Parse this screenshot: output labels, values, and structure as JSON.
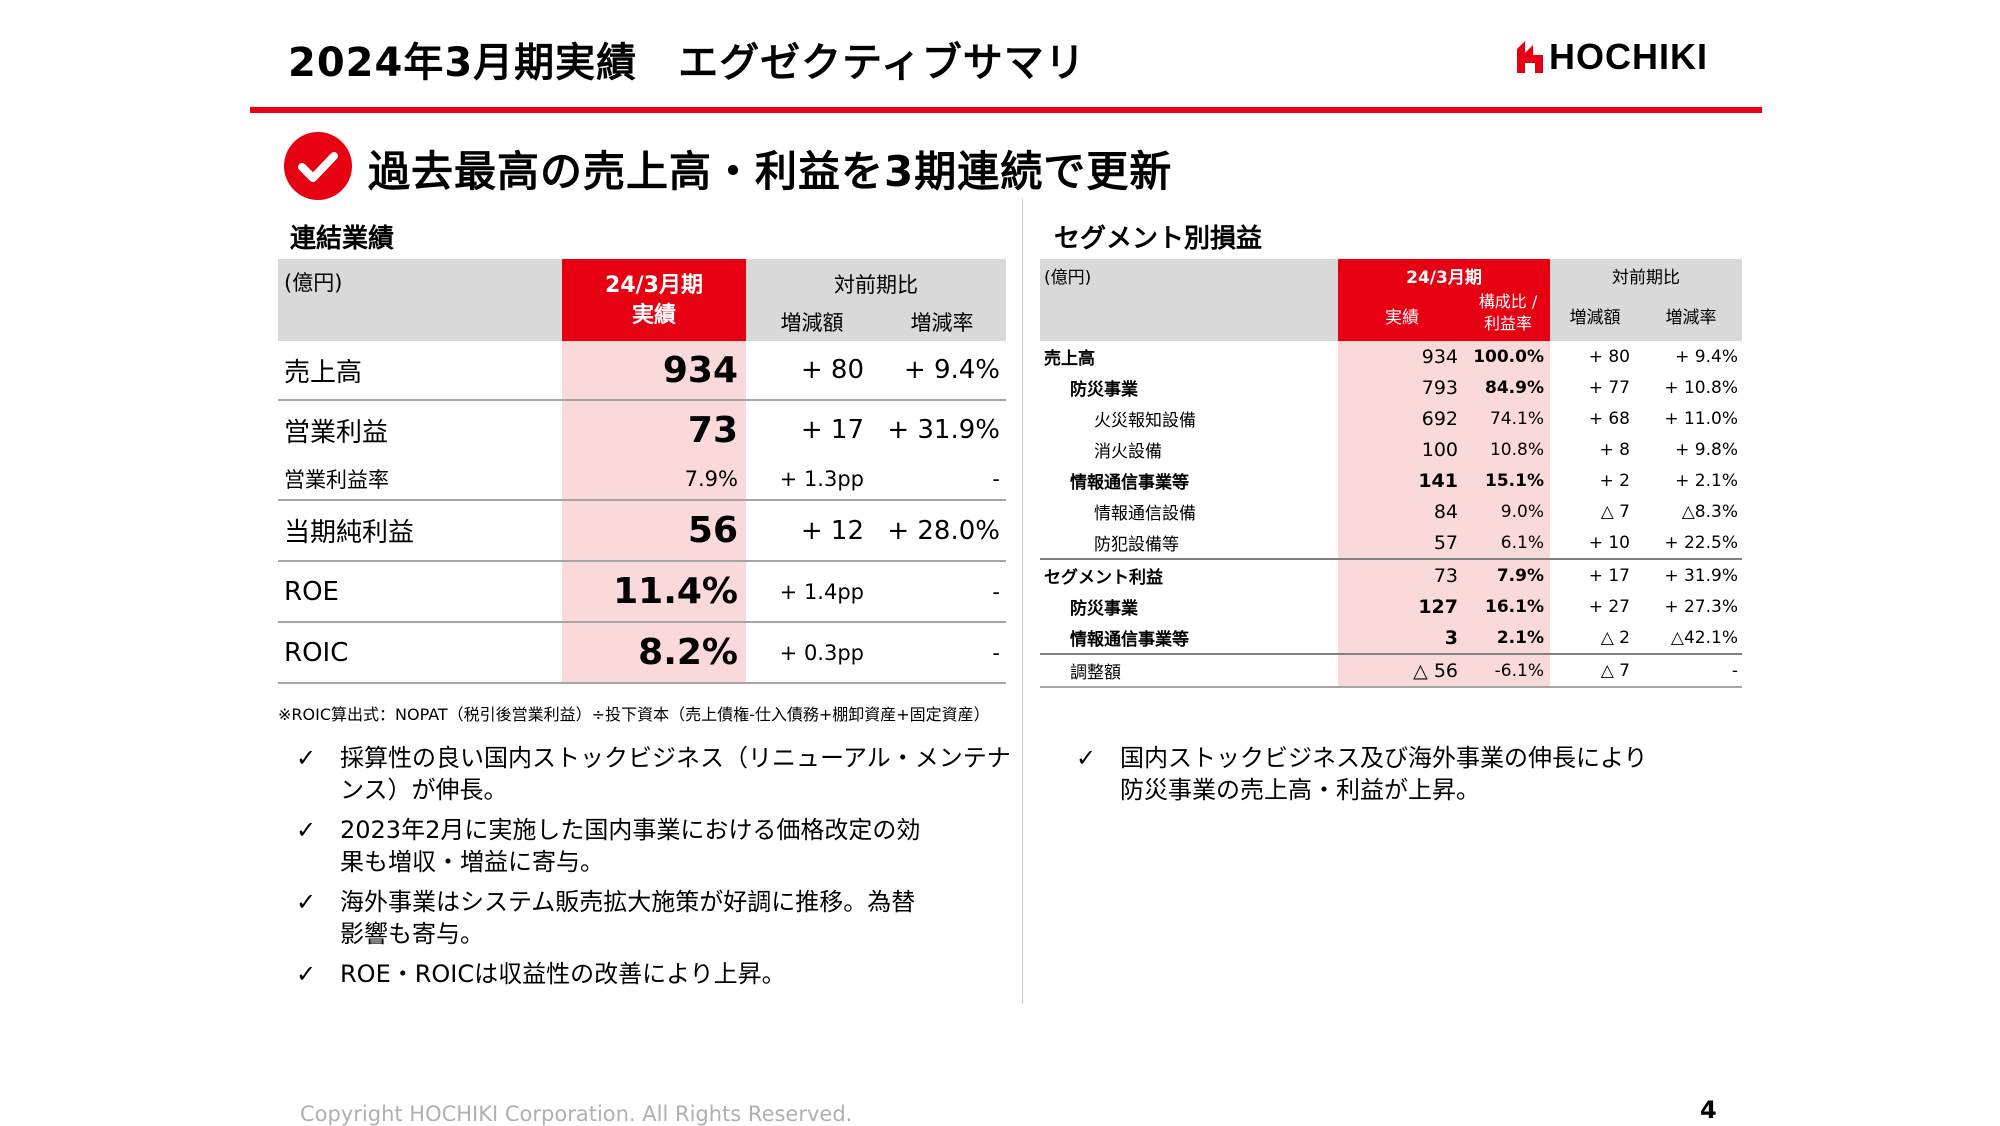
{
  "page_title": "2024年3月期実績　エグゼクティブサマリ",
  "logo_text": "HOCHIKI",
  "headline": "過去最高の売上高・利益を3期連続で更新",
  "consolidated": {
    "title": "連結業績",
    "unit": "(億円)",
    "col_actual_line1": "24/3月期",
    "col_actual_line2": "実績",
    "col_yoy": "対前期比",
    "col_change": "増減額",
    "col_rate": "増減率",
    "rows": [
      {
        "label": "売上高",
        "value": "934",
        "change": "+ 80",
        "rate": "+ 9.4%"
      },
      {
        "label": "営業利益",
        "value": "73",
        "change": "+ 17",
        "rate": "+ 31.9%"
      },
      {
        "label": "営業利益率",
        "value": "7.9%",
        "change": "+ 1.3pp",
        "rate": "-"
      },
      {
        "label": "当期純利益",
        "value": "56",
        "change": "+ 12",
        "rate": "+ 28.0%"
      },
      {
        "label": "ROE",
        "value": "11.4%",
        "change": "+ 1.4pp",
        "rate": "-"
      },
      {
        "label": "ROIC",
        "value": "8.2%",
        "change": "+ 0.3pp",
        "rate": "-"
      }
    ],
    "note": "※ROIC算出式：NOPAT（税引後営業利益）÷投下資本（売上債権-仕入債務+棚卸資産+固定資産）"
  },
  "left_bullets": {
    "tick": "✓",
    "items": [
      {
        "line1": "採算性の良い国内ストックビジネス（リニューアル・メンテナ",
        "line2": "ンス）が伸長。"
      },
      {
        "line1": "2023年2月に実施した国内事業における価格改定の効",
        "line2": "果も増収・増益に寄与。"
      },
      {
        "line1": "海外事業はシステム販売拡大施策が好調に推移。為替",
        "line2": "影響も寄与。"
      },
      {
        "line1": "ROE・ROICは収益性の改善により上昇。",
        "line2": ""
      }
    ]
  },
  "segment": {
    "title": "セグメント別損益",
    "unit": "(億円)",
    "col_period": "24/3月期",
    "col_actual": "実績",
    "col_ratio_line1": "構成比 /",
    "col_ratio_line2": "利益率",
    "col_yoy": "対前期比",
    "col_change": "増減額",
    "col_rate": "増減率",
    "rows": [
      {
        "label": "売上高",
        "value": "934",
        "ratio": "100.0%",
        "change": "+ 80",
        "rate": "+ 9.4%"
      },
      {
        "label": "防災事業",
        "value": "793",
        "ratio": "84.9%",
        "change": "+ 77",
        "rate": "+ 10.8%"
      },
      {
        "label": "火災報知設備",
        "value": "692",
        "ratio": "74.1%",
        "change": "+ 68",
        "rate": "+ 11.0%"
      },
      {
        "label": "消火設備",
        "value": "100",
        "ratio": "10.8%",
        "change": "+ 8",
        "rate": "+ 9.8%"
      },
      {
        "label": "情報通信事業等",
        "value": "141",
        "ratio": "15.1%",
        "change": "+ 2",
        "rate": "+ 2.1%"
      },
      {
        "label": "情報通信設備",
        "value": "84",
        "ratio": "9.0%",
        "change": "△ 7",
        "rate": "△8.3%"
      },
      {
        "label": "防犯設備等",
        "value": "57",
        "ratio": "6.1%",
        "change": "+ 10",
        "rate": "+ 22.5%"
      },
      {
        "label": "セグメント利益",
        "value": "73",
        "ratio": "7.9%",
        "change": "+ 17",
        "rate": "+ 31.9%"
      },
      {
        "label": "防災事業",
        "value": "127",
        "ratio": "16.1%",
        "change": "+ 27",
        "rate": "+ 27.3%"
      },
      {
        "label": "情報通信事業等",
        "value": "3",
        "ratio": "2.1%",
        "change": "△ 2",
        "rate": "△42.1%"
      },
      {
        "label": "調整額",
        "value": "△ 56",
        "ratio": "-6.1%",
        "change": "△ 7",
        "rate": "-"
      }
    ]
  },
  "right_bullets": {
    "tick": "✓",
    "items": [
      {
        "line1": "国内ストックビジネス及び海外事業の伸長により",
        "line2": "防災事業の売上高・利益が上昇。"
      }
    ]
  },
  "footer": "Copyright HOCHIKI Corporation. All Rights Reserved.",
  "page_number": "4",
  "colors": {
    "brand_red": "#e60012",
    "header_gray": "#d9d9d9",
    "highlight_pink": "#f9d9d9"
  }
}
